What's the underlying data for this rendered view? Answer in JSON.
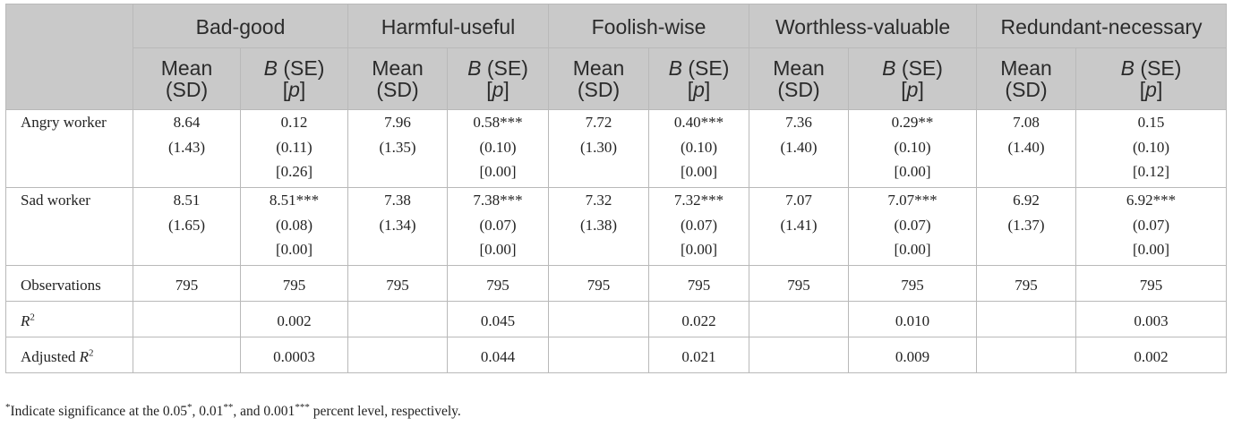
{
  "columns": {
    "groups": [
      "Bad-good",
      "Harmful-useful",
      "Foolish-wise",
      "Worthless-valuable",
      "Redundant-necessary"
    ],
    "sub": {
      "mean_line1": "Mean",
      "mean_line2": "(SD)",
      "b_italic": "B",
      "b_rest": " (SE)",
      "p_open": "[",
      "p_italic": "p",
      "p_close": "]"
    }
  },
  "rows": {
    "angry": {
      "label": "Angry worker",
      "cells": [
        [
          "8.64",
          "(1.43)"
        ],
        [
          "0.12",
          "(0.11)",
          "[0.26]"
        ],
        [
          "7.96",
          "(1.35)"
        ],
        [
          "0.58***",
          "(0.10)",
          "[0.00]"
        ],
        [
          "7.72",
          "(1.30)"
        ],
        [
          "0.40***",
          "(0.10)",
          "[0.00]"
        ],
        [
          "7.36",
          "(1.40)"
        ],
        [
          "0.29**",
          "(0.10)",
          "[0.00]"
        ],
        [
          "7.08",
          "(1.40)"
        ],
        [
          "0.15",
          "(0.10)",
          "[0.12]"
        ]
      ]
    },
    "sad": {
      "label": "Sad worker",
      "cells": [
        [
          "8.51",
          "(1.65)"
        ],
        [
          "8.51***",
          "(0.08)",
          "[0.00]"
        ],
        [
          "7.38",
          "(1.34)"
        ],
        [
          "7.38***",
          "(0.07)",
          "[0.00]"
        ],
        [
          "7.32",
          "(1.38)"
        ],
        [
          "7.32***",
          "(0.07)",
          "[0.00]"
        ],
        [
          "7.07",
          "(1.41)"
        ],
        [
          "7.07***",
          "(0.07)",
          "[0.00]"
        ],
        [
          "6.92",
          "(1.37)"
        ],
        [
          "6.92***",
          "(0.07)",
          "[0.00]"
        ]
      ]
    },
    "observations": {
      "label": "Observations",
      "cells": [
        "795",
        "795",
        "795",
        "795",
        "795",
        "795",
        "795",
        "795",
        "795",
        "795"
      ]
    },
    "r2": {
      "label_base": "R",
      "label_sup": "2",
      "cells": [
        "",
        "0.002",
        "",
        "0.045",
        "",
        "0.022",
        "",
        "0.010",
        "",
        "0.003"
      ]
    },
    "adj_r2": {
      "label_base": "Adjusted ",
      "label_r": "R",
      "label_sup": "2",
      "cells": [
        "",
        "0.0003",
        "",
        "0.044",
        "",
        "0.021",
        "",
        "0.009",
        "",
        "0.002"
      ]
    }
  },
  "note": {
    "star": "*",
    "text_a": "Indicate significance at the 0.05",
    "s1": "*",
    "text_b": ", 0.01",
    "s2": "**",
    "text_c": ", and 0.001",
    "s3": "***",
    "text_d": " percent level, respectively."
  }
}
